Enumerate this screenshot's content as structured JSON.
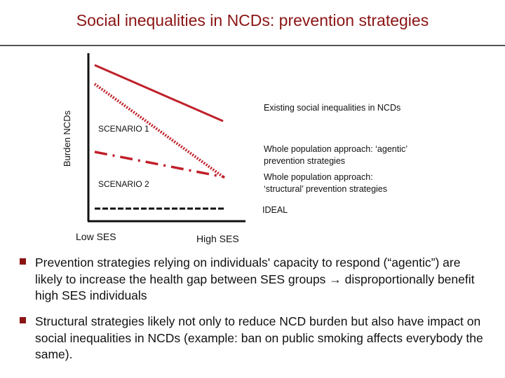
{
  "title": "Social inequalities in NCDs: prevention strategies",
  "diagram": {
    "y_axis_label": "Burden NCDs",
    "x_low_label": "Low SES",
    "x_high_label": "High SES",
    "lines": {
      "existing": "Existing social inequalities in NCDs",
      "agentic": [
        "Whole population approach: ‘agentic’",
        "prevention strategies"
      ],
      "structural": [
        "Whole population approach:",
        "‘structural’ prevention strategies"
      ],
      "ideal": "IDEAL"
    },
    "scenario1": "SCENARIO 1",
    "scenario2": "SCENARIO 2",
    "colors": {
      "accent": "#c0202a",
      "dark": "#111111"
    }
  },
  "bullets": [
    "Prevention strategies relying on individuals' capacity to respond (“agentic”) are likely to increase the health gap between SES groups → disproportionally benefit high SES individuals",
    "Structural strategies likely not only to reduce NCD burden but also have impact on social inequalities in NCDs (example: ban on public smoking affects everybody the same)."
  ]
}
